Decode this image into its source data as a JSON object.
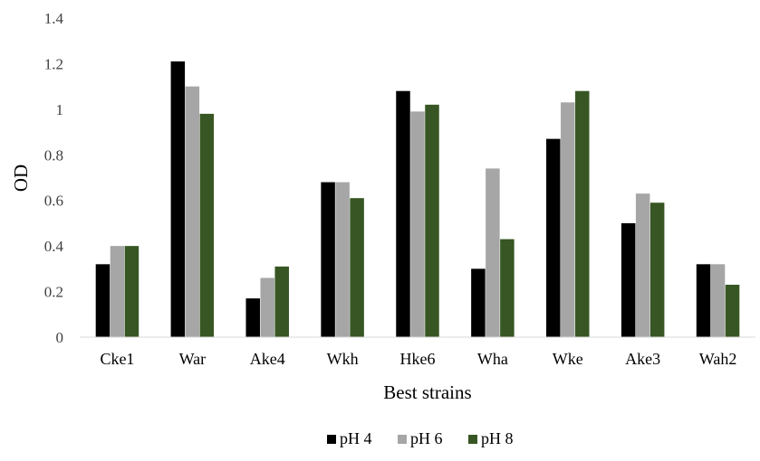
{
  "chart_data": {
    "type": "bar",
    "title": "",
    "xlabel": "Best strains",
    "ylabel": "OD",
    "ylim": [
      0,
      1.4
    ],
    "yticks": [
      "0",
      "0.2",
      "0.4",
      "0.6",
      "0.8",
      "1",
      "1.2",
      "1.4"
    ],
    "grid": false,
    "legend_position": "bottom",
    "categories": [
      "Cke1",
      "War",
      "Ake4",
      "Wkh",
      "Hke6",
      "Wha",
      "Wke",
      "Ake3",
      "Wah2"
    ],
    "series": [
      {
        "name": "pH 4",
        "color": "#000000",
        "values": [
          0.32,
          1.21,
          0.17,
          0.68,
          1.08,
          0.3,
          0.87,
          0.5,
          0.32
        ]
      },
      {
        "name": "pH 6",
        "color": "#a6a6a6",
        "values": [
          0.4,
          1.1,
          0.26,
          0.68,
          0.99,
          0.74,
          1.03,
          0.63,
          0.32
        ]
      },
      {
        "name": "pH 8",
        "color": "#375623",
        "values": [
          0.4,
          0.98,
          0.31,
          0.61,
          1.02,
          0.43,
          1.08,
          0.59,
          0.23
        ]
      }
    ]
  }
}
